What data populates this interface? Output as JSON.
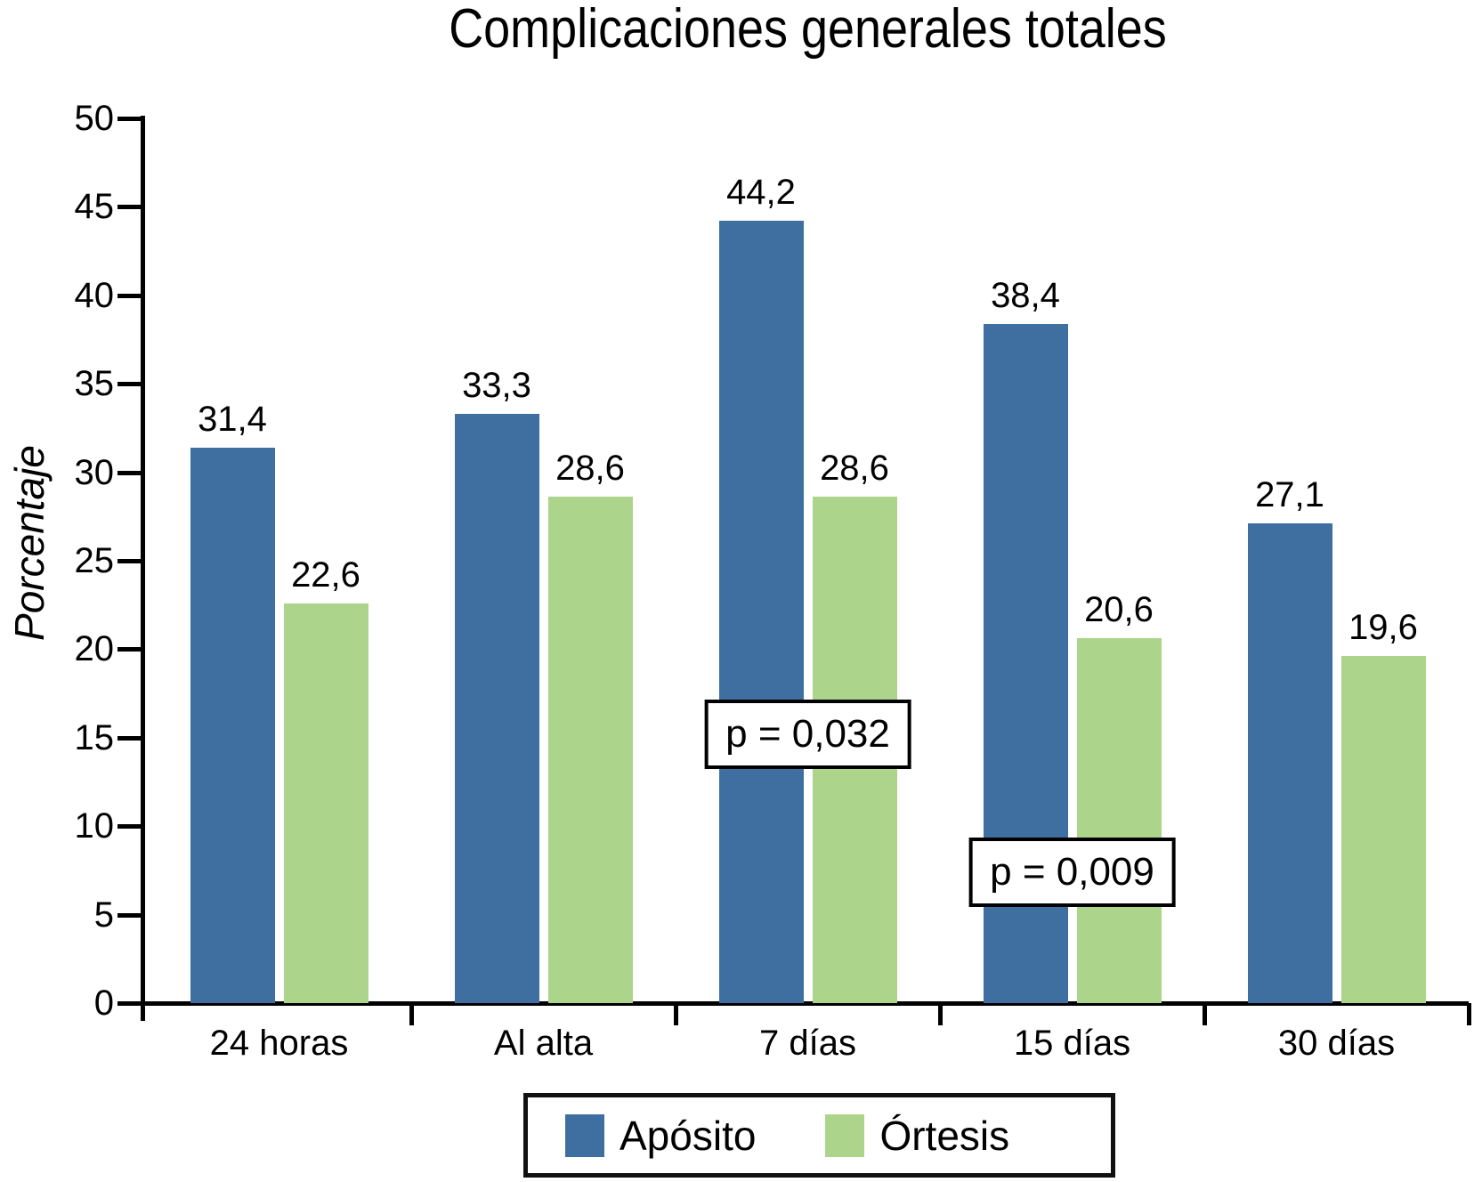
{
  "chart_data": {
    "type": "bar",
    "title": "Complicaciones generales totales",
    "ylabel": "Porcentaje",
    "xlabel": "",
    "categories": [
      "24 horas",
      "Al alta",
      "7 días",
      "15 días",
      "30 días"
    ],
    "series": [
      {
        "name": "Apósito",
        "color": "#3E6FA0",
        "values": [
          31.4,
          33.3,
          44.2,
          38.4,
          27.1
        ],
        "labels": [
          "31,4",
          "33,3",
          "44,2",
          "38,4",
          "27,1"
        ]
      },
      {
        "name": "Órtesis",
        "color": "#ACD48B",
        "values": [
          22.6,
          28.6,
          28.6,
          20.6,
          19.6
        ],
        "labels": [
          "22,6",
          "28,6",
          "28,6",
          "20,6",
          "19,6"
        ]
      }
    ],
    "ylim": [
      0,
      50
    ],
    "ytick_step": 5,
    "yticks": [
      "0",
      "5",
      "10",
      "15",
      "20",
      "25",
      "30",
      "35",
      "40",
      "45",
      "50"
    ],
    "grid": false,
    "legend_position": "bottom",
    "annotations": [
      {
        "text": "p = 0,032",
        "category_index": 2,
        "y_value": 15.2
      },
      {
        "text": "p = 0,009",
        "category_index": 3,
        "y_value": 7.4
      }
    ]
  }
}
